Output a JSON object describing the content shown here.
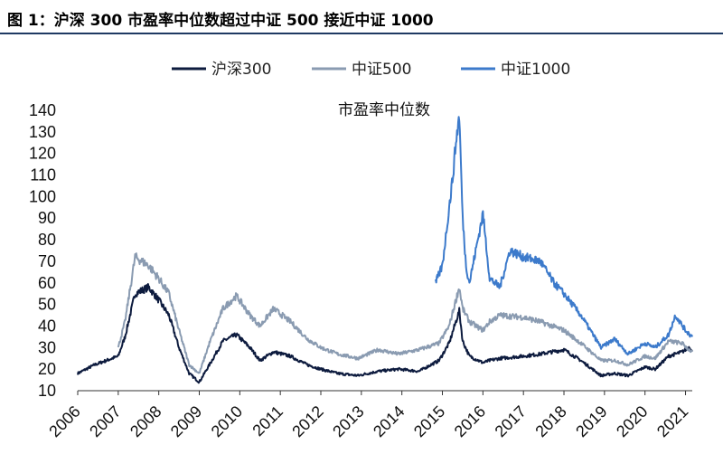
{
  "header": {
    "title": "图 1：沪深 300 市盈率中位数超过中证 500 接近中证 1000"
  },
  "chart_data": {
    "type": "line",
    "title": "市盈率中位数",
    "xlabel": "",
    "ylabel": "",
    "xlim": [
      "2006-01",
      "2021-03"
    ],
    "ylim": [
      10,
      140
    ],
    "y_ticks": [
      10,
      20,
      30,
      40,
      50,
      60,
      70,
      80,
      90,
      100,
      110,
      120,
      130,
      140
    ],
    "x_ticks": [
      "2006",
      "2007",
      "2008",
      "2009",
      "2010",
      "2011",
      "2012",
      "2013",
      "2014",
      "2015",
      "2016",
      "2017",
      "2018",
      "2019",
      "2020",
      "2021"
    ],
    "legend_position": "top",
    "grid": false,
    "colors": {
      "沪深300": "#0d1b3e",
      "中证500": "#8a9bb1",
      "中证1000": "#3c7acb"
    },
    "series": [
      {
        "name": "沪深300",
        "x": [
          "2006-01",
          "2006-06",
          "2007-01",
          "2007-03",
          "2007-06",
          "2007-10",
          "2008-01",
          "2008-04",
          "2008-07",
          "2008-10",
          "2009-01",
          "2009-04",
          "2009-08",
          "2009-12",
          "2010-04",
          "2010-07",
          "2010-11",
          "2011-04",
          "2011-09",
          "2012-01",
          "2012-06",
          "2012-12",
          "2013-06",
          "2013-12",
          "2014-06",
          "2014-12",
          "2015-03",
          "2015-06",
          "2015-07",
          "2015-09",
          "2016-01",
          "2016-03",
          "2016-06",
          "2017-01",
          "2017-06",
          "2018-01",
          "2018-06",
          "2018-12",
          "2019-04",
          "2019-08",
          "2020-01",
          "2020-04",
          "2020-08",
          "2020-12",
          "2021-02",
          "2021-03"
        ],
        "values": [
          18,
          22,
          26,
          35,
          55,
          58,
          52,
          45,
          30,
          18,
          14,
          22,
          33,
          36,
          30,
          24,
          28,
          26,
          22,
          20,
          18,
          17,
          19,
          20,
          19,
          24,
          32,
          47,
          33,
          26,
          23,
          24,
          25,
          26,
          27,
          29,
          24,
          17,
          18,
          17,
          21,
          20,
          26,
          28,
          30,
          29
        ]
      },
      {
        "name": "中证500",
        "x": [
          "2007-01",
          "2007-03",
          "2007-06",
          "2007-10",
          "2008-01",
          "2008-04",
          "2008-07",
          "2008-10",
          "2009-01",
          "2009-04",
          "2009-08",
          "2009-12",
          "2010-04",
          "2010-07",
          "2010-11",
          "2011-04",
          "2011-09",
          "2012-01",
          "2012-06",
          "2012-12",
          "2013-06",
          "2013-12",
          "2014-06",
          "2014-12",
          "2015-03",
          "2015-06",
          "2015-07",
          "2015-09",
          "2016-01",
          "2016-03",
          "2016-06",
          "2017-01",
          "2017-06",
          "2018-01",
          "2018-06",
          "2018-12",
          "2019-04",
          "2019-08",
          "2020-01",
          "2020-04",
          "2020-08",
          "2020-12",
          "2021-02",
          "2021-03"
        ],
        "values": [
          30,
          42,
          72,
          68,
          62,
          55,
          38,
          22,
          18,
          32,
          48,
          54,
          45,
          40,
          48,
          42,
          34,
          30,
          27,
          25,
          29,
          27,
          29,
          32,
          40,
          58,
          48,
          42,
          38,
          42,
          45,
          44,
          42,
          38,
          32,
          24,
          24,
          22,
          26,
          25,
          33,
          32,
          29,
          28
        ]
      },
      {
        "name": "中证1000",
        "x": [
          "2014-11",
          "2015-01",
          "2015-03",
          "2015-04",
          "2015-05",
          "2015-06",
          "2015-07",
          "2015-08",
          "2015-09",
          "2016-01",
          "2016-03",
          "2016-06",
          "2016-09",
          "2017-01",
          "2017-06",
          "2017-10",
          "2018-01",
          "2018-06",
          "2018-12",
          "2019-04",
          "2019-08",
          "2020-01",
          "2020-04",
          "2020-08",
          "2020-10",
          "2021-01",
          "2021-03"
        ],
        "values": [
          60,
          68,
          95,
          108,
          125,
          138,
          90,
          68,
          60,
          92,
          62,
          58,
          75,
          72,
          70,
          60,
          55,
          45,
          30,
          34,
          27,
          32,
          30,
          36,
          45,
          38,
          35
        ]
      }
    ]
  }
}
